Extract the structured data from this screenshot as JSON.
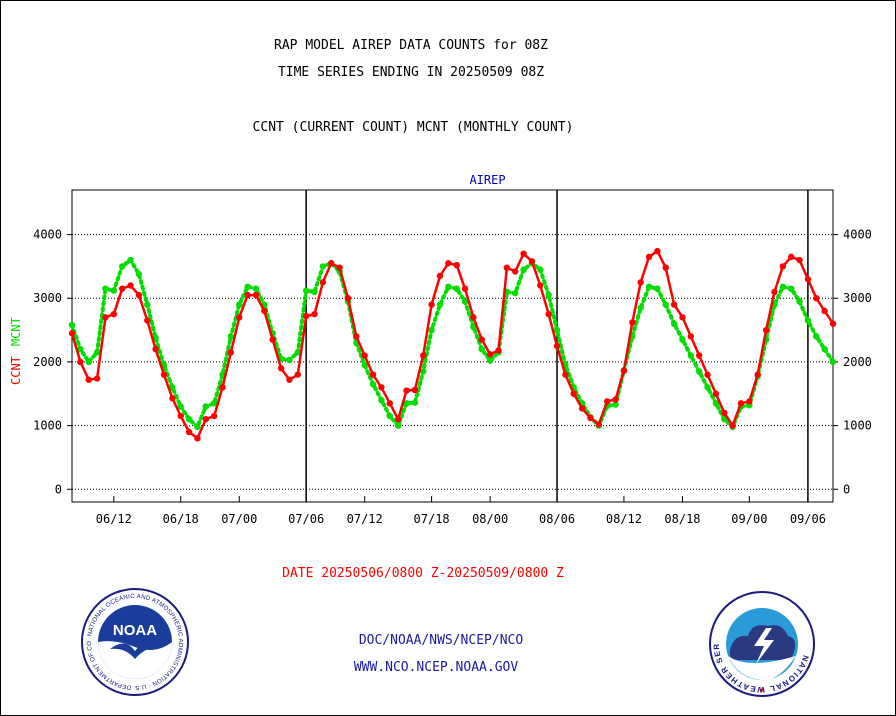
{
  "header": {
    "title_line1": "RAP MODEL AIREP DATA COUNTS for 08Z",
    "title_line2": "TIME SERIES ENDING IN 20250509 08Z",
    "subtitle": "CCNT (CURRENT COUNT) MCNT (MONTHLY COUNT)"
  },
  "footer": {
    "date_range": "DATE 20250506/0800 Z-20250509/0800 Z",
    "org_line": "DOC/NOAA/NWS/NCEP/NCO",
    "website": "WWW.NCO.NCEP.NOAA.GOV"
  },
  "logos": {
    "noaa": {
      "icon": "noaa-logo-icon",
      "text": "NOAA",
      "ring_text": "NATIONAL OCEANIC AND ATMOSPHERIC ADMINISTRATION · U.S. DEPARTMENT OF COMMERCE"
    },
    "nws": {
      "icon": "nws-logo-icon",
      "ring_text": "NATIONAL WEATHER SERVICE"
    }
  },
  "colors": {
    "ccnt": "#ff0000",
    "mcnt": "#00dd00",
    "panel_title": "#0000cc",
    "footer_blue": "#1a1aa0",
    "date_red": "#ff0000"
  },
  "chart_data": {
    "type": "line",
    "title": "AIREP",
    "ylabel_ccnt": "CCNT",
    "ylabel_mcnt": "MCNT",
    "ylim": [
      -200,
      4700
    ],
    "yticks": [
      0,
      1000,
      2000,
      3000,
      4000
    ],
    "ytick_labels": [
      "0",
      "1000",
      "2000",
      "3000",
      "4000"
    ],
    "grid": true,
    "x_range": [
      0,
      91
    ],
    "x_tick_positions": [
      5,
      13,
      20,
      28,
      35,
      43,
      50,
      58,
      66,
      73,
      81,
      88
    ],
    "x_tick_labels": [
      "06/12",
      "06/18",
      "07/00",
      "07/06",
      "07/12",
      "07/18",
      "08/00",
      "08/06",
      "08/12",
      "08/18",
      "09/00",
      "09/06"
    ],
    "vertical_lines": [
      28,
      58,
      88
    ],
    "series": [
      {
        "name": "CCNT",
        "color": "#ff0000",
        "x": [
          0,
          1,
          2,
          3,
          4,
          5,
          6,
          7,
          8,
          9,
          10,
          11,
          12,
          13,
          14,
          15,
          16,
          17,
          18,
          19,
          20,
          21,
          22,
          23,
          24,
          25,
          26,
          27,
          28,
          29,
          30,
          31,
          32,
          33,
          34,
          35,
          36,
          37,
          38,
          39,
          40,
          41,
          42,
          43,
          44,
          45,
          46,
          47,
          48,
          49,
          50,
          51,
          52,
          53,
          54,
          55,
          56,
          57,
          58,
          59,
          60,
          61,
          62,
          63,
          64,
          65,
          66,
          67,
          68,
          69,
          70,
          71,
          72,
          73,
          74,
          75,
          76,
          77,
          78,
          79,
          80,
          81,
          82,
          83,
          84,
          85,
          86,
          87,
          88,
          89,
          90,
          91
        ],
        "values": [
          2450,
          2000,
          1720,
          1740,
          2700,
          2750,
          3150,
          3200,
          3050,
          2650,
          2200,
          1800,
          1430,
          1150,
          900,
          800,
          1100,
          1150,
          1600,
          2150,
          2700,
          3050,
          3050,
          2800,
          2350,
          1900,
          1720,
          1800,
          2720,
          2750,
          3250,
          3550,
          3480,
          3000,
          2400,
          2100,
          1800,
          1600,
          1350,
          1100,
          1550,
          1560,
          2100,
          2900,
          3350,
          3550,
          3520,
          3150,
          2700,
          2350,
          2120,
          2180,
          3480,
          3420,
          3700,
          3580,
          3200,
          2750,
          2250,
          1800,
          1500,
          1270,
          1120,
          1020,
          1380,
          1410,
          1860,
          2620,
          3250,
          3650,
          3740,
          3480,
          2900,
          2700,
          2400,
          2100,
          1800,
          1500,
          1200,
          1000,
          1350,
          1380,
          1800,
          2500,
          3100,
          3500,
          3650,
          3600,
          3300,
          3000,
          2800,
          2600
        ]
      },
      {
        "name": "MCNT",
        "color": "#00dd00",
        "x": [
          0,
          1,
          2,
          3,
          4,
          5,
          6,
          7,
          8,
          9,
          10,
          11,
          12,
          13,
          14,
          15,
          16,
          17,
          18,
          19,
          20,
          21,
          22,
          23,
          24,
          25,
          26,
          27,
          28,
          29,
          30,
          31,
          32,
          33,
          34,
          35,
          36,
          37,
          38,
          39,
          40,
          41,
          42,
          43,
          44,
          45,
          46,
          47,
          48,
          49,
          50,
          51,
          52,
          53,
          54,
          55,
          56,
          57,
          58,
          59,
          60,
          61,
          62,
          63,
          64,
          65,
          66,
          67,
          68,
          69,
          70,
          71,
          72,
          73,
          74,
          75,
          76,
          77,
          78,
          79,
          80,
          81,
          82,
          83,
          84,
          85,
          86,
          87,
          88,
          89,
          90,
          91
        ],
        "values": [
          2580,
          2200,
          2000,
          2150,
          3150,
          3120,
          3500,
          3600,
          3380,
          2900,
          2380,
          1950,
          1600,
          1300,
          1100,
          980,
          1300,
          1350,
          1800,
          2400,
          2900,
          3180,
          3150,
          2900,
          2450,
          2050,
          2030,
          2150,
          3120,
          3100,
          3500,
          3550,
          3420,
          2950,
          2300,
          1950,
          1650,
          1400,
          1150,
          1000,
          1350,
          1360,
          1850,
          2500,
          2900,
          3180,
          3150,
          2950,
          2550,
          2200,
          2020,
          2150,
          3100,
          3080,
          3450,
          3550,
          3450,
          3050,
          2500,
          1950,
          1600,
          1350,
          1130,
          1000,
          1310,
          1330,
          1870,
          2400,
          2850,
          3180,
          3150,
          2900,
          2600,
          2350,
          2100,
          1850,
          1600,
          1350,
          1100,
          980,
          1300,
          1320,
          1780,
          2350,
          2900,
          3180,
          3150,
          2950,
          2650,
          2400,
          2200,
          2000
        ]
      }
    ]
  }
}
